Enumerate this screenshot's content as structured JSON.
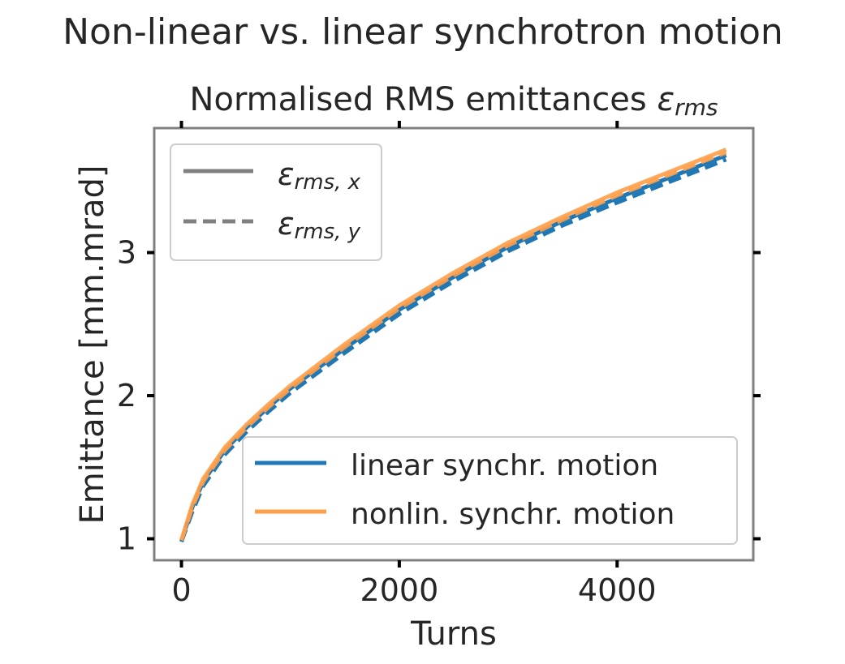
{
  "figure": {
    "suptitle": "Non-linear vs. linear synchrotron motion"
  },
  "chart_data": {
    "type": "line",
    "title_main": "Normalised RMS emittances ",
    "title_symbol": "ε",
    "title_subscript": "rms",
    "xlabel": "Turns",
    "ylabel": "Emittance [mm.mrad]",
    "xlim": [
      -250,
      5250
    ],
    "ylim": [
      0.85,
      3.87
    ],
    "xticks": [
      0,
      2000,
      4000
    ],
    "yticks": [
      1,
      2,
      3
    ],
    "xtick_labels": [
      "0",
      "2000",
      "4000"
    ],
    "ytick_labels": [
      "1",
      "2",
      "3"
    ],
    "grid": false,
    "style_legend": {
      "placement": "top-left",
      "color": "#808080",
      "entries": [
        {
          "symbol": "ε",
          "subscript": "rms, x",
          "dash": "solid"
        },
        {
          "symbol": "ε",
          "subscript": "rms, y",
          "dash": "dashed"
        }
      ]
    },
    "series_legend": {
      "placement": "bottom-right",
      "entries": [
        {
          "label": "linear synchr. motion",
          "color": "#1f77b4"
        },
        {
          "label": "nonlin. synchr. motion",
          "color": "#ff9f4a"
        }
      ]
    },
    "series": [
      {
        "color": "#1f77b4",
        "dash": "solid",
        "x": [
          0,
          100,
          200,
          400,
          600,
          800,
          1000,
          1500,
          2000,
          2500,
          3000,
          3500,
          4000,
          4500,
          5000
        ],
        "y": [
          0.98,
          1.22,
          1.4,
          1.62,
          1.78,
          1.92,
          2.05,
          2.33,
          2.6,
          2.83,
          3.04,
          3.22,
          3.38,
          3.53,
          3.68
        ]
      },
      {
        "color": "#1f77b4",
        "dash": "dashed",
        "x": [
          0,
          100,
          200,
          400,
          600,
          800,
          1000,
          1500,
          2000,
          2500,
          3000,
          3500,
          4000,
          4500,
          5000
        ],
        "y": [
          0.98,
          1.19,
          1.37,
          1.59,
          1.75,
          1.89,
          2.02,
          2.3,
          2.57,
          2.8,
          3.01,
          3.19,
          3.35,
          3.5,
          3.65
        ]
      },
      {
        "color": "#ff9f4a",
        "dash": "solid",
        "x": [
          0,
          100,
          200,
          400,
          600,
          800,
          1000,
          1500,
          2000,
          2500,
          3000,
          3500,
          4000,
          4500,
          5000
        ],
        "y": [
          0.99,
          1.24,
          1.42,
          1.64,
          1.8,
          1.94,
          2.07,
          2.36,
          2.63,
          2.86,
          3.07,
          3.25,
          3.42,
          3.57,
          3.72
        ]
      },
      {
        "color": "#ff9f4a",
        "dash": "dashed",
        "x": [
          0,
          100,
          200,
          400,
          600,
          800,
          1000,
          1500,
          2000,
          2500,
          3000,
          3500,
          4000,
          4500,
          5000
        ],
        "y": [
          0.99,
          1.22,
          1.4,
          1.62,
          1.78,
          1.92,
          2.05,
          2.34,
          2.61,
          2.84,
          3.05,
          3.23,
          3.4,
          3.55,
          3.7
        ]
      }
    ]
  }
}
